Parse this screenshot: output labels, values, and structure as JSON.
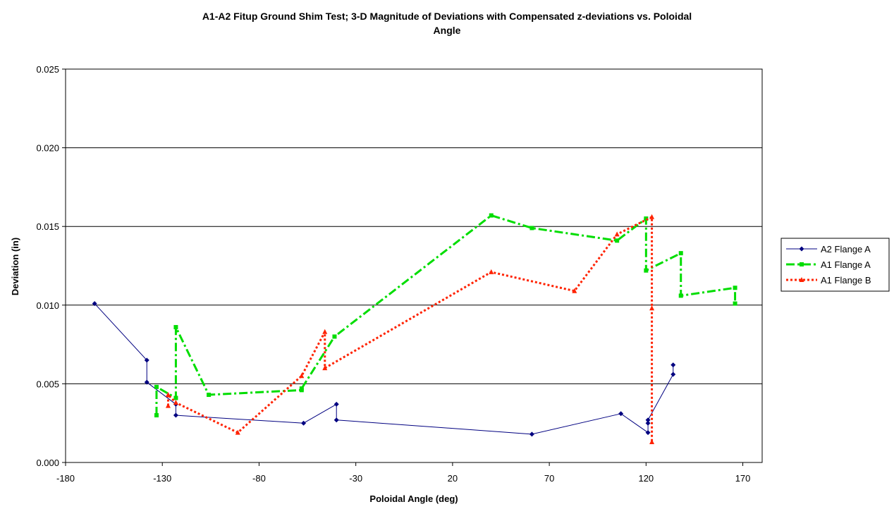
{
  "chart_data": {
    "type": "line",
    "title": "A1-A2 Fitup Ground Shim Test; 3-D Magnitude of Deviations with Compensated z-deviations vs. Poloidal",
    "title_line2": "Angle",
    "xlabel": "Poloidal Angle (deg)",
    "ylabel": "Deviation (in)",
    "xlim": [
      -180,
      180
    ],
    "ylim": [
      0.0,
      0.025
    ],
    "xticks": [
      -180,
      -130,
      -80,
      -30,
      20,
      70,
      120,
      170
    ],
    "xtick_labels": [
      "-180",
      "-130",
      "-80",
      "-30",
      "20",
      "70",
      "120",
      "170"
    ],
    "yticks": [
      0.0,
      0.005,
      0.01,
      0.015,
      0.02,
      0.025
    ],
    "ytick_labels": [
      "0.000",
      "0.005",
      "0.010",
      "0.015",
      "0.020",
      "0.025"
    ],
    "grid": "horizontal",
    "legend_position": "right",
    "series": [
      {
        "name": "A2 Flange A",
        "color": "#000080",
        "line_style": "solid",
        "marker": "diamond",
        "points": [
          [
            -165,
            0.0101
          ],
          [
            -138,
            0.0065
          ],
          [
            -138,
            0.0051
          ],
          [
            -123,
            0.0037
          ],
          [
            -123,
            0.003
          ],
          [
            -57,
            0.0025
          ],
          [
            -40,
            0.0037
          ],
          [
            -40,
            0.0027
          ],
          [
            61,
            0.0018
          ],
          [
            107,
            0.0031
          ],
          [
            121,
            0.0019
          ],
          [
            121,
            0.0025
          ],
          [
            121,
            0.0027
          ],
          [
            134,
            0.0056
          ],
          [
            134,
            0.0062
          ]
        ]
      },
      {
        "name": "A1 Flange A",
        "color": "#00dd00",
        "line_style": "dashdot",
        "marker": "square",
        "points": [
          [
            -133,
            0.003
          ],
          [
            -133,
            0.0048
          ],
          [
            -123,
            0.0041
          ],
          [
            -123,
            0.0086
          ],
          [
            -106,
            0.0043
          ],
          [
            -58,
            0.0046
          ],
          [
            -58,
            0.0047
          ],
          [
            -41,
            0.008
          ],
          [
            40,
            0.0157
          ],
          [
            61,
            0.0149
          ],
          [
            105,
            0.0141
          ],
          [
            120,
            0.0155
          ],
          [
            120,
            0.0122
          ],
          [
            138,
            0.0133
          ],
          [
            138,
            0.0106
          ],
          [
            166,
            0.0111
          ],
          [
            166,
            0.0101
          ]
        ]
      },
      {
        "name": "A1 Flange B",
        "color": "#ff2200",
        "line_style": "dotted",
        "marker": "triangle",
        "points": [
          [
            -127,
            0.0036
          ],
          [
            -127,
            0.0043
          ],
          [
            -123,
            0.0038
          ],
          [
            -91,
            0.0019
          ],
          [
            -58,
            0.0055
          ],
          [
            -46,
            0.0083
          ],
          [
            -46,
            0.006
          ],
          [
            40,
            0.0121
          ],
          [
            83,
            0.0109
          ],
          [
            105,
            0.0145
          ],
          [
            123,
            0.0156
          ],
          [
            123,
            0.0098
          ],
          [
            123,
            0.0013
          ]
        ]
      }
    ]
  }
}
